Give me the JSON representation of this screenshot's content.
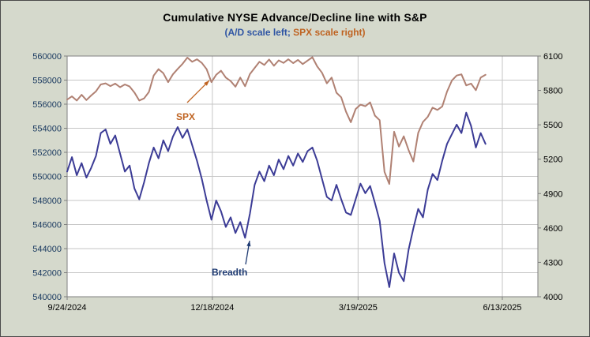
{
  "title": "Cumulative NYSE Advance/Decline line with S&P",
  "subtitle": {
    "part1": "(A/D scale left;",
    "part2": " SPX scale right)"
  },
  "colors": {
    "background": "#d5d9cc",
    "plot_bg": "#ffffff",
    "grid": "#c6c6c6",
    "plot_border": "#7f7f7f",
    "ad_text": "#2f55a4",
    "spx_text": "#bf6321",
    "left_axis_text": "#17375e",
    "right_axis_text": "#000000",
    "x_axis_text": "#000000"
  },
  "chart_data": {
    "type": "line",
    "title": "Cumulative NYSE Advance/Decline line with S&P",
    "subtitle": "(A/D scale left; SPX scale right)",
    "grid": true,
    "legend": "none",
    "x_axis": {
      "max_index": 90.5,
      "ticks": [
        {
          "label": "9/24/2024",
          "pos": 0
        },
        {
          "label": "12/18/2024",
          "pos": 30.2
        },
        {
          "label": "3/19/2025",
          "pos": 60.5
        },
        {
          "label": "6/13/2025",
          "pos": 90.5
        }
      ]
    },
    "left_axis": {
      "min": 540000,
      "max": 560000,
      "tick_step": 2000
    },
    "right_axis": {
      "min": 4000,
      "max": 6100,
      "tick_step": 300
    },
    "series": [
      {
        "name": "Breadth",
        "axis": "left",
        "color": "#3c3c96",
        "values": [
          550400,
          551600,
          550100,
          551100,
          549900,
          550700,
          551700,
          553600,
          553900,
          552700,
          553400,
          551900,
          550400,
          550900,
          549000,
          548100,
          549500,
          551100,
          552400,
          551500,
          553000,
          552100,
          553300,
          554100,
          553200,
          553900,
          552600,
          551300,
          549800,
          548000,
          546400,
          548000,
          547100,
          545800,
          546600,
          545300,
          546200,
          544900,
          546900,
          549300,
          550400,
          549600,
          550900,
          550100,
          551400,
          550600,
          551700,
          550900,
          551900,
          551200,
          552100,
          552400,
          551300,
          549800,
          548300,
          548000,
          549300,
          548100,
          547000,
          546800,
          548100,
          549400,
          548600,
          549200,
          547800,
          546300,
          542800,
          540800,
          543600,
          542000,
          541300,
          543900,
          545700,
          547300,
          546600,
          548900,
          550200,
          549700,
          551300,
          552700,
          553500,
          554300,
          553600,
          555300,
          554200,
          552400,
          553600,
          552700
        ]
      },
      {
        "name": "SPX",
        "axis": "right",
        "color": "#b08173",
        "values": [
          5720,
          5748,
          5712,
          5762,
          5716,
          5756,
          5792,
          5852,
          5862,
          5838,
          5860,
          5828,
          5852,
          5834,
          5782,
          5712,
          5730,
          5786,
          5930,
          5986,
          5950,
          5872,
          5940,
          5988,
          6032,
          6086,
          6050,
          6072,
          6040,
          5986,
          5872,
          5936,
          5972,
          5912,
          5882,
          5832,
          5912,
          5836,
          5942,
          5996,
          6050,
          6022,
          6070,
          6015,
          6062,
          6040,
          6072,
          6038,
          6066,
          6030,
          6060,
          6090,
          6010,
          5954,
          5862,
          5912,
          5780,
          5740,
          5614,
          5522,
          5638,
          5676,
          5662,
          5696,
          5580,
          5540,
          5090,
          4984,
          5440,
          5310,
          5400,
          5280,
          5180,
          5430,
          5525,
          5570,
          5650,
          5630,
          5660,
          5790,
          5886,
          5930,
          5940,
          5844,
          5860,
          5802,
          5912,
          5936
        ]
      }
    ],
    "annotations": [
      {
        "label": "SPX",
        "color": "#bf6321"
      },
      {
        "label": "Breadth",
        "color": "#1f3b73"
      }
    ]
  }
}
